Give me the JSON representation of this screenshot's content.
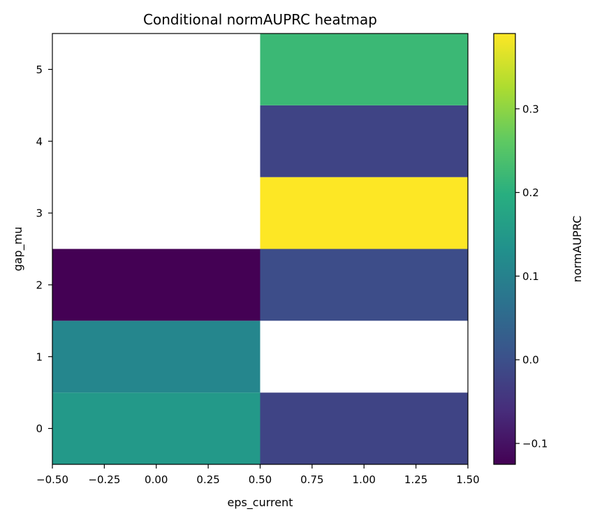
{
  "chart_data": {
    "type": "heatmap",
    "title": "Conditional normAUPRC heatmap",
    "xlabel": "eps_current",
    "ylabel": "gap_mu",
    "x_categories": [
      0,
      1
    ],
    "y_categories": [
      0,
      1,
      2,
      3,
      4,
      5
    ],
    "xlim": [
      -0.5,
      1.5
    ],
    "ylim": [
      -0.5,
      5.5
    ],
    "x_ticks": [
      "−0.50",
      "−0.25",
      "0.00",
      "0.25",
      "0.50",
      "0.75",
      "1.00",
      "1.25",
      "1.50"
    ],
    "y_ticks": [
      "0",
      "1",
      "2",
      "3",
      "4",
      "5"
    ],
    "cells": [
      {
        "x": 0,
        "y": 0,
        "value": 0.15
      },
      {
        "x": 0,
        "y": 1,
        "value": 0.11
      },
      {
        "x": 0,
        "y": 2,
        "value": -0.125
      },
      {
        "x": 0,
        "y": 3,
        "value": null
      },
      {
        "x": 0,
        "y": 4,
        "value": null
      },
      {
        "x": 0,
        "y": 5,
        "value": null
      },
      {
        "x": 1,
        "y": 0,
        "value": -0.02
      },
      {
        "x": 1,
        "y": 1,
        "value": null
      },
      {
        "x": 1,
        "y": 2,
        "value": -0.005
      },
      {
        "x": 1,
        "y": 3,
        "value": 0.39
      },
      {
        "x": 1,
        "y": 4,
        "value": -0.02
      },
      {
        "x": 1,
        "y": 5,
        "value": 0.22
      }
    ],
    "colorbar": {
      "label": "normAUPRC",
      "min": -0.125,
      "max": 0.39,
      "colormap": "viridis",
      "ticks": [
        -0.1,
        0.0,
        0.1,
        0.2,
        0.3
      ],
      "tick_labels": [
        "−0.1",
        "0.0",
        "0.1",
        "0.2",
        "0.3"
      ]
    },
    "grid": false,
    "missing_color": "#ffffff"
  }
}
